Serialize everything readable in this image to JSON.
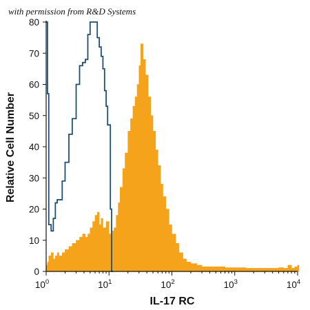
{
  "watermark": "with permission from R&D Systems",
  "chart_data": {
    "type": "area",
    "xlabel": "IL-17 RC",
    "ylabel": "Relative Cell Number",
    "x_scale": "log",
    "xlim": [
      1,
      10000
    ],
    "ylim": [
      0,
      80
    ],
    "grid": false,
    "colors": {
      "control": "#1f4e6f",
      "stained": "#f5a31a"
    },
    "x_ticks": [
      {
        "value": 1,
        "base": "10",
        "exp": "0"
      },
      {
        "value": 10,
        "base": "10",
        "exp": "1"
      },
      {
        "value": 100,
        "base": "10",
        "exp": "2"
      },
      {
        "value": 1000,
        "base": "10",
        "exp": "3"
      },
      {
        "value": 10000,
        "base": "10",
        "exp": "4"
      }
    ],
    "y_ticks": [
      "0",
      "10",
      "20",
      "30",
      "40",
      "50",
      "60",
      "70",
      "80"
    ],
    "series": [
      {
        "style": "outline",
        "color": "#1f4e6f",
        "x": [
          1.0,
          1.05,
          1.1,
          1.2,
          1.3,
          1.4,
          1.5,
          1.6,
          1.8,
          2.0,
          2.3,
          2.6,
          3.0,
          3.4,
          3.8,
          4.2,
          4.6,
          5.0,
          5.5,
          6.0,
          6.5,
          7.0,
          7.5,
          8.0,
          8.5,
          9.0,
          9.5,
          10.5,
          11.0
        ],
        "y": [
          80,
          57,
          15,
          13,
          17,
          22,
          23,
          23,
          29,
          35,
          44,
          49,
          60,
          66,
          67,
          68,
          76,
          80,
          80,
          80,
          75,
          72,
          69,
          65,
          58,
          53,
          47,
          20,
          0
        ]
      },
      {
        "style": "filled",
        "color": "#f5a31a",
        "x": [
          1.0,
          1.05,
          1.1,
          1.2,
          1.3,
          1.4,
          1.5,
          1.6,
          1.8,
          2.0,
          2.3,
          2.6,
          3.0,
          3.4,
          3.8,
          4.2,
          4.6,
          5.0,
          5.5,
          6.0,
          6.5,
          7.0,
          7.5,
          8.0,
          9.0,
          10.0,
          11.0,
          12.0,
          13.0,
          14.0,
          15.0,
          16.5,
          18.0,
          20.0,
          22.0,
          24.0,
          26.0,
          28.0,
          30.0,
          32.0,
          35.0,
          38.0,
          42.0,
          46.0,
          50.0,
          55.0,
          60.0,
          66.0,
          72.0,
          80.0,
          90.0,
          100.0,
          115.0,
          130.0,
          150.0,
          170.0,
          200.0,
          250.0,
          300.0,
          400.0,
          500.0,
          700.0,
          1000.0,
          1500.0,
          2000.0,
          3000.0,
          4000.0,
          5000.0,
          6000.0,
          7000.0,
          8000.0,
          9000.0,
          10000.0
        ],
        "y": [
          2,
          3,
          5,
          6,
          4,
          5,
          6,
          5,
          6,
          7,
          8,
          9,
          10,
          11,
          12,
          11,
          12,
          14,
          16,
          18,
          19,
          15,
          17,
          14,
          16,
          12,
          13,
          14,
          18,
          22,
          27,
          33,
          38,
          45,
          49,
          53,
          56,
          60,
          66,
          73,
          68,
          63,
          56,
          50,
          45,
          39,
          34,
          28,
          24,
          20,
          15,
          12,
          9,
          6,
          4,
          3,
          2.5,
          2,
          1.5,
          1.5,
          1.5,
          1.2,
          1.2,
          1,
          1,
          1,
          1,
          1.2,
          1,
          2,
          1,
          1.5,
          2
        ]
      }
    ]
  }
}
